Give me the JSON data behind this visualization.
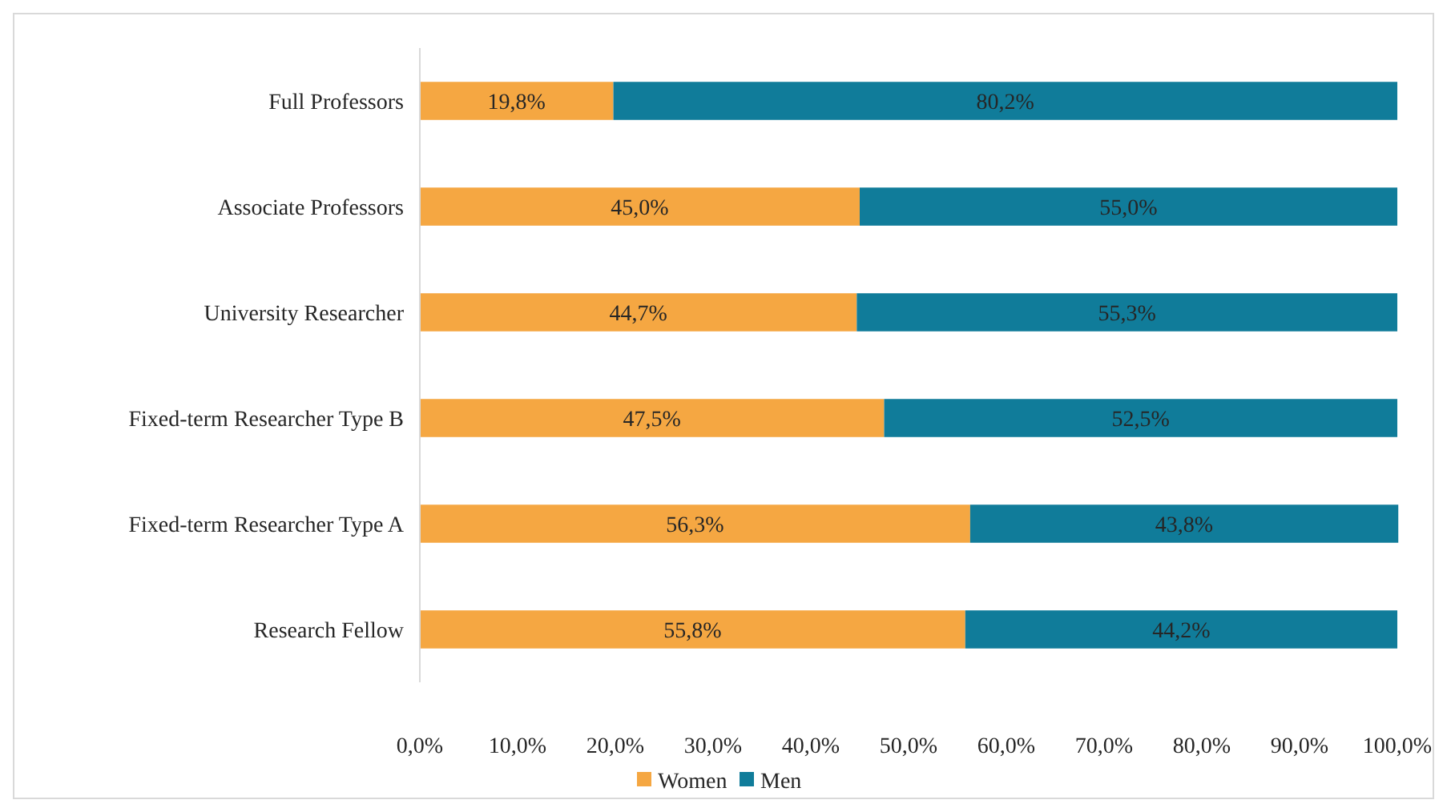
{
  "chart_data": {
    "type": "bar",
    "orientation": "horizontal",
    "stacked": true,
    "categories": [
      "Full Professors",
      "Associate Professors",
      "University Researcher",
      "Fixed-term Researcher Type B",
      "Fixed-term Researcher Type A",
      "Research Fellow"
    ],
    "series": [
      {
        "name": "Women",
        "color": "#f5a742",
        "values": [
          19.8,
          45.0,
          44.7,
          47.5,
          56.3,
          55.8
        ],
        "value_labels": [
          "19,8%",
          "45,0%",
          "44,7%",
          "47,5%",
          "56,3%",
          "55,8%"
        ]
      },
      {
        "name": "Men",
        "color": "#107c9a",
        "values": [
          80.2,
          55.0,
          55.3,
          52.5,
          43.8,
          44.2
        ],
        "value_labels": [
          "80,2%",
          "55,0%",
          "55,3%",
          "52,5%",
          "43,8%",
          "44,2%"
        ]
      }
    ],
    "xlim": [
      0,
      100
    ],
    "xticks": [
      {
        "value": 0,
        "label": "0,0%"
      },
      {
        "value": 10,
        "label": "10,0%"
      },
      {
        "value": 20,
        "label": "20,0%"
      },
      {
        "value": 30,
        "label": "30,0%"
      },
      {
        "value": 40,
        "label": "40,0%"
      },
      {
        "value": 50,
        "label": "50,0%"
      },
      {
        "value": 60,
        "label": "60,0%"
      },
      {
        "value": 70,
        "label": "70,0%"
      },
      {
        "value": 80,
        "label": "80,0%"
      },
      {
        "value": 90,
        "label": "90,0%"
      },
      {
        "value": 100,
        "label": "100,0%"
      }
    ],
    "legend": "bottom",
    "grid": false
  }
}
